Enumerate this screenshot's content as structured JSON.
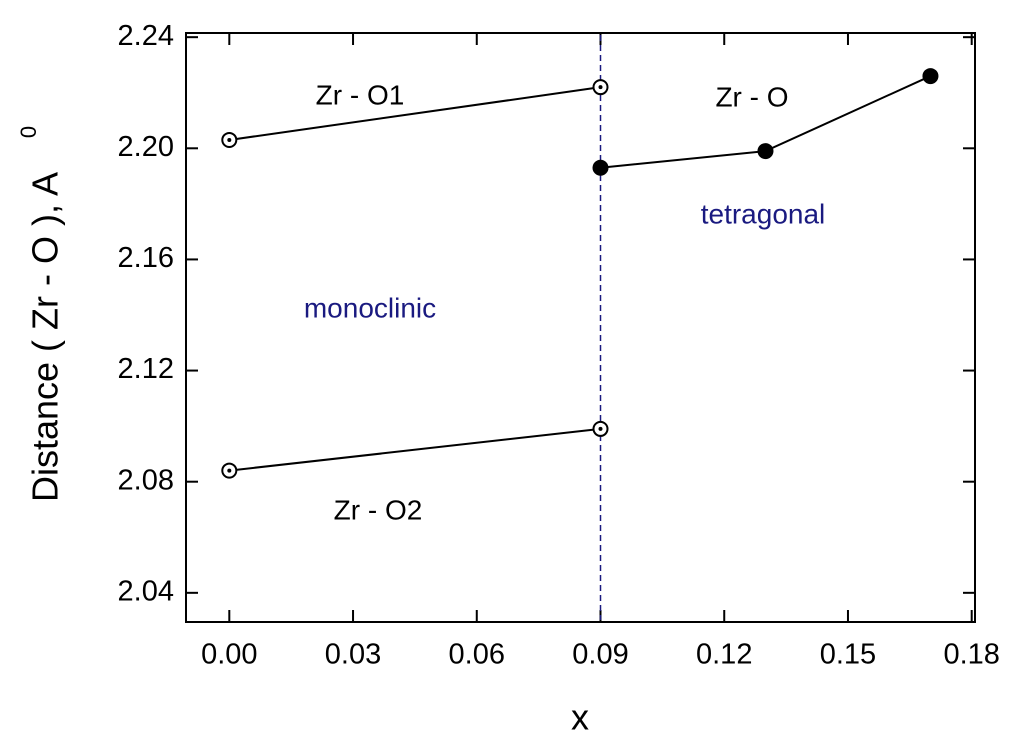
{
  "chart_data": {
    "type": "line",
    "ylabel": "Distance ( Zr - O ), A",
    "ylabel_superscript": "0",
    "xlabel": "x",
    "xlim": [
      -0.0105,
      0.1808
    ],
    "ylim": [
      2.0295,
      2.2415
    ],
    "xticks": [
      {
        "value": 0,
        "label": "0.00"
      },
      0.03,
      0.06,
      0.09,
      0.12,
      0.15,
      0.18
    ],
    "yticks": [
      2.04,
      2.08,
      2.12,
      2.16,
      {
        "value": 2.2,
        "label": "2.20"
      },
      2.24
    ],
    "vline": {
      "x": 0.09,
      "color": "#1a1a80"
    },
    "series": [
      {
        "name": "Zr - O1",
        "color": "#000000",
        "marker": "open",
        "x": [
          0,
          0.09
        ],
        "values": [
          2.203,
          2.222
        ]
      },
      {
        "name": "Zr - O2",
        "color": "#000000",
        "marker": "open",
        "x": [
          0,
          0.09
        ],
        "values": [
          2.084,
          2.099
        ]
      },
      {
        "name": "Zr - O",
        "color": "#000000",
        "marker": "filled",
        "x": [
          0.09,
          0.13,
          0.17
        ],
        "values": [
          2.193,
          2.199,
          2.226
        ]
      }
    ],
    "annotations": [
      {
        "text": "monoclinic",
        "color": "#1a1a80"
      },
      {
        "text": "tetragonal",
        "color": "#1a1a80"
      }
    ]
  }
}
